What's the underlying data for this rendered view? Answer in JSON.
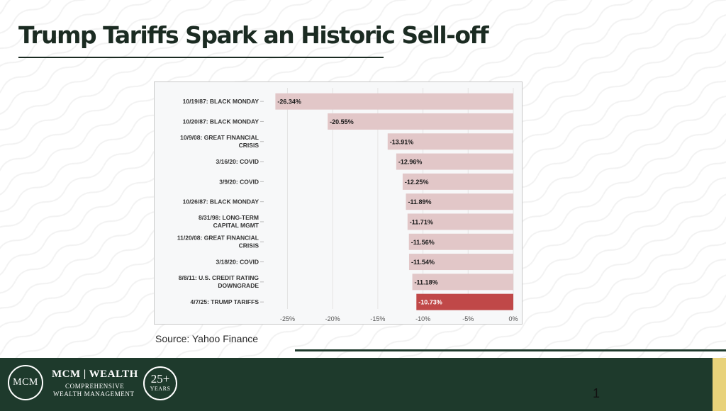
{
  "slide": {
    "title": "Trump Tariffs Spark an Historic Sell-off",
    "source": "Source: Yahoo Finance",
    "page_number": "1"
  },
  "footer": {
    "brand_initials": "MCM",
    "brand_name": "MCM | WEALTH",
    "brand_line1": "COMPREHENSIVE",
    "brand_line2": "WEALTH MANAGEMENT",
    "badge_number": "25+",
    "badge_label": "YEARS"
  },
  "colors": {
    "bar": "#e2c7c8",
    "bar_highlight": "#c04848",
    "dark_green": "#1e3a2c",
    "gold": "#e8d27a"
  },
  "chart_data": {
    "type": "bar",
    "orientation": "horizontal",
    "title": "",
    "xlabel": "",
    "ylabel": "",
    "xlim": [
      -27,
      0
    ],
    "x_ticks": [
      -25,
      -20,
      -15,
      -10,
      -5,
      0
    ],
    "x_tick_labels": [
      "-25%",
      "-20%",
      "-15%",
      "-10%",
      "-5%",
      "0%"
    ],
    "grid": true,
    "categories": [
      [
        "10/19/87: BLACK MONDAY"
      ],
      [
        "10/20/87: BLACK MONDAY"
      ],
      [
        "10/9/08: GREAT FINANCIAL",
        "CRISIS"
      ],
      [
        "3/16/20: COVID"
      ],
      [
        "3/9/20: COVID"
      ],
      [
        "10/26/87: BLACK MONDAY"
      ],
      [
        "8/31/98: LONG-TERM",
        "CAPITAL MGMT"
      ],
      [
        "11/20/08: GREAT FINANCIAL",
        "CRISIS"
      ],
      [
        "3/18/20: COVID"
      ],
      [
        "8/8/11: U.S. CREDIT RATING",
        "DOWNGRADE"
      ],
      [
        "4/7/25: TRUMP TARIFFS"
      ]
    ],
    "values": [
      -26.34,
      -20.55,
      -13.91,
      -12.96,
      -12.25,
      -11.89,
      -11.71,
      -11.56,
      -11.54,
      -11.18,
      -10.73
    ],
    "value_labels": [
      "-26.34%",
      "-20.55%",
      "-13.91%",
      "-12.96%",
      "-12.25%",
      "-11.89%",
      "-11.71%",
      "-11.56%",
      "-11.54%",
      "-11.18%",
      "-10.73%"
    ],
    "highlight_index": 10
  }
}
